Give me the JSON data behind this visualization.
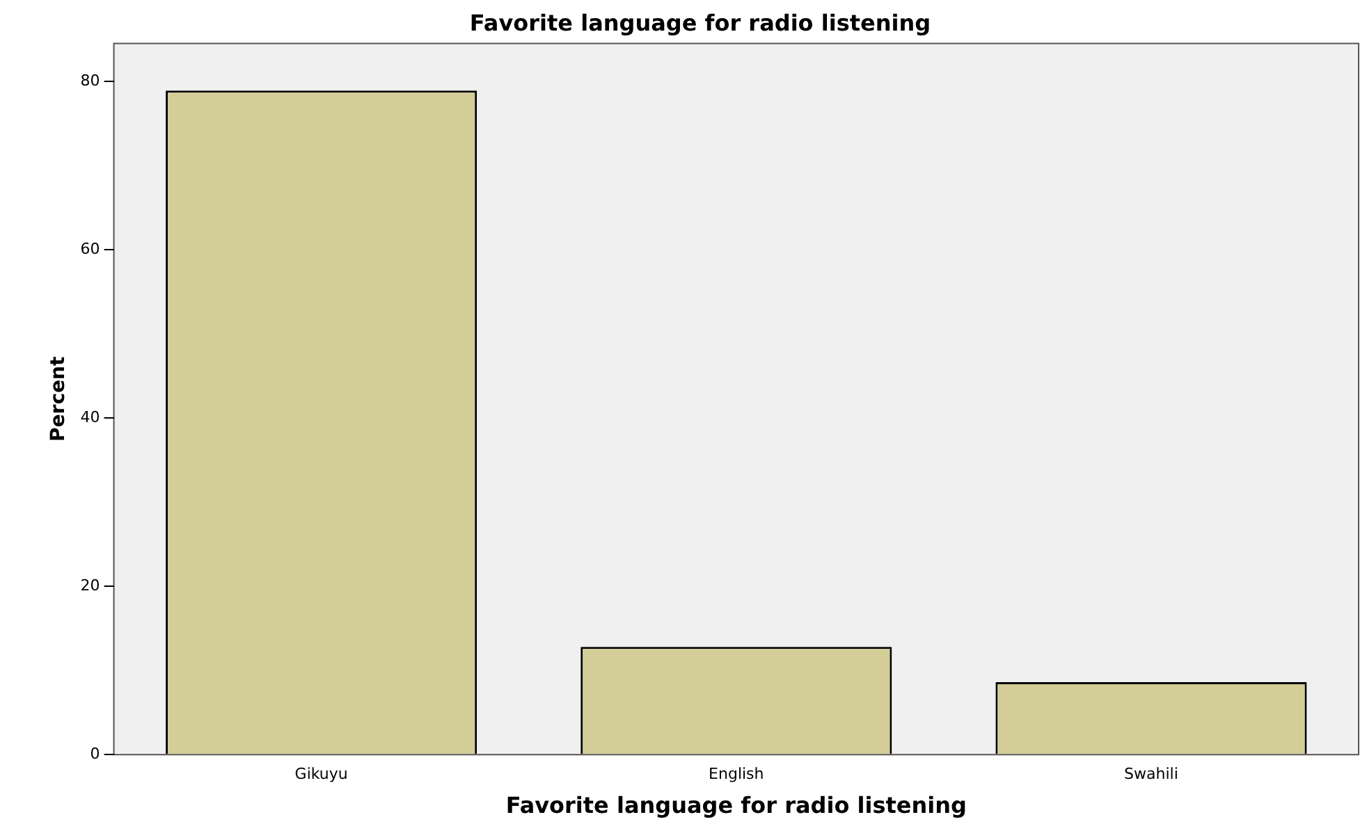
{
  "chart_data": {
    "type": "bar",
    "title": "Favorite language for radio listening",
    "xlabel": "Favorite language for radio listening",
    "ylabel": "Percent",
    "categories": [
      "Gikuyu",
      "English",
      "Swahili"
    ],
    "values": [
      78.9,
      12.8,
      8.6
    ],
    "color": "#d3cd98",
    "ylim": [
      0,
      84.5
    ],
    "yticks": [
      0,
      20,
      40,
      60,
      80
    ],
    "grid": false,
    "legend": false
  }
}
